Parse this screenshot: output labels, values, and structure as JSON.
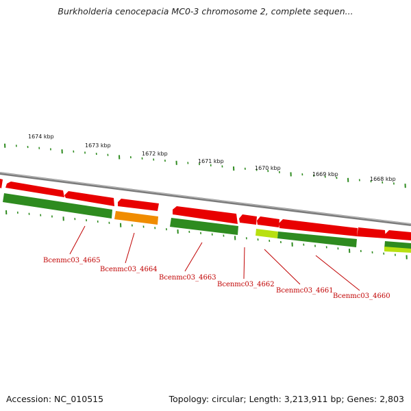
{
  "title": "Burkholderia cenocepacia MC0-3 chromosome 2, complete sequen...",
  "footer": {
    "accession": "Accession: NC_010515",
    "summary": "Topology: circular; Length: 3,213,911 bp; Genes: 2,803"
  },
  "colors": {
    "backbone": "#8a8a8a",
    "forward_gene": "#e80000",
    "reverse_gene": "#2e8b1f",
    "orange_gene": "#f08c00",
    "lightgreen_gene": "#b8e010",
    "tick": "#2e8b1f",
    "label": "#c00000"
  },
  "kbp_labels": [
    "1674 kbp",
    "1673 kbp",
    "1672 kbp",
    "1671 kbp",
    "1670 kbp",
    "1669 kbp",
    "1668 kbp"
  ],
  "gene_labels": [
    "Bcenmc03_4665",
    "Bcenmc03_4664",
    "Bcenmc03_4663",
    "Bcenmc03_4662",
    "Bcenmc03_4661",
    "Bcenmc03_4660"
  ]
}
